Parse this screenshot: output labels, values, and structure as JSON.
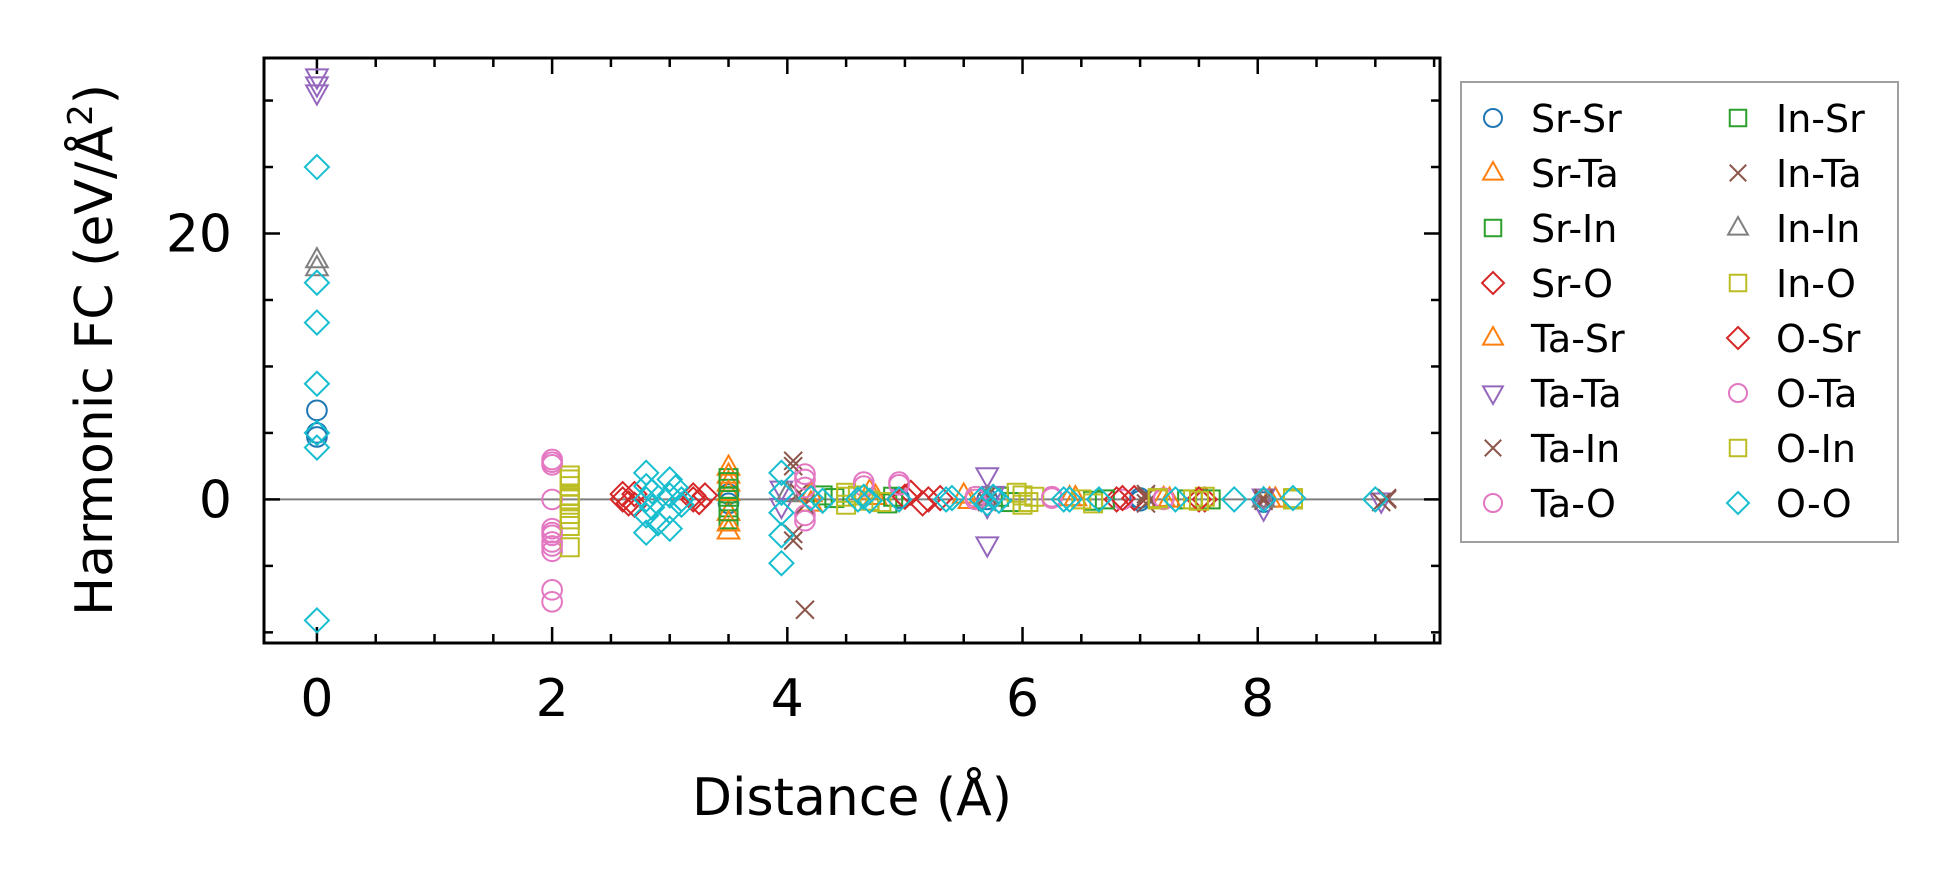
{
  "chart_data": {
    "type": "scatter",
    "xlabel": "Distance (Å)",
    "ylabel_main": "Harmonic FC (eV/Å",
    "ylabel_sup": "2",
    "ylabel_end": ")",
    "xlim": [
      -0.45,
      9.55
    ],
    "ylim": [
      -10.8,
      33.2
    ],
    "xticks": [
      0,
      2,
      4,
      6,
      8
    ],
    "yticks": [
      0,
      20
    ],
    "xtick_labels": [
      "0",
      "2",
      "4",
      "6",
      "8"
    ],
    "ytick_labels": [
      "0",
      "20"
    ],
    "x_minor_step": 0.5,
    "y_minor_step": 5,
    "zero_line": true,
    "grid": false,
    "legend_position": "outside right",
    "legend_columns": 2,
    "series": [
      {
        "name": "Sr-Sr",
        "marker": "circle",
        "color": "#1f77b4",
        "points": [
          [
            0,
            6.7
          ],
          [
            0,
            5.0
          ],
          [
            0,
            4.7
          ],
          [
            3.5,
            0.4
          ],
          [
            3.5,
            -0.3
          ],
          [
            4.95,
            0.1
          ],
          [
            5.7,
            0
          ],
          [
            7.0,
            0.1
          ],
          [
            7.0,
            -0.1
          ],
          [
            8.05,
            -0.2
          ]
        ]
      },
      {
        "name": "Sr-Ta",
        "marker": "triangle-up",
        "color": "#ff7f0e",
        "points": [
          [
            3.5,
            2.4
          ],
          [
            3.5,
            -2.4
          ],
          [
            3.5,
            1.2
          ],
          [
            3.5,
            -1.0
          ],
          [
            4.2,
            0.4
          ],
          [
            4.7,
            0.6
          ],
          [
            5.5,
            0.3
          ],
          [
            6.4,
            0.1
          ],
          [
            7.2,
            0.05
          ],
          [
            8.1,
            0
          ]
        ]
      },
      {
        "name": "Sr-In",
        "marker": "square",
        "color": "#2ca02c",
        "points": [
          [
            3.5,
            1.6
          ],
          [
            3.5,
            0.8
          ],
          [
            3.5,
            -0.6
          ],
          [
            3.5,
            -1.5
          ],
          [
            4.3,
            0.3
          ],
          [
            4.85,
            -0.3
          ],
          [
            5.8,
            0.2
          ],
          [
            6.6,
            -0.1
          ],
          [
            7.4,
            0
          ],
          [
            8.3,
            0
          ]
        ]
      },
      {
        "name": "Sr-O",
        "marker": "diamond",
        "color": "#d62728",
        "points": [
          [
            2.6,
            0
          ],
          [
            2.65,
            -0.3
          ],
          [
            2.7,
            0.4
          ],
          [
            3.2,
            0.3
          ],
          [
            3.25,
            -0.2
          ],
          [
            4.95,
            0
          ],
          [
            5.05,
            0.5
          ],
          [
            5.15,
            -0.3
          ],
          [
            5.3,
            0.1
          ],
          [
            6.8,
            0
          ],
          [
            6.95,
            0.1
          ],
          [
            7.55,
            0
          ]
        ]
      },
      {
        "name": "Ta-Sr",
        "marker": "triangle-up",
        "color": "#ff7f0e",
        "points": [
          [
            3.5,
            1.8
          ],
          [
            3.5,
            -1.8
          ],
          [
            3.5,
            0.5
          ],
          [
            4.2,
            -0.3
          ],
          [
            4.75,
            0.2
          ],
          [
            5.55,
            -0.1
          ],
          [
            6.45,
            0.1
          ],
          [
            7.25,
            0
          ],
          [
            8.15,
            0
          ]
        ]
      },
      {
        "name": "Ta-Ta",
        "marker": "triangle-down",
        "color": "#9467bd",
        "points": [
          [
            0,
            31.8
          ],
          [
            0,
            31.2
          ],
          [
            0,
            30.6
          ],
          [
            3.95,
            -0.5
          ],
          [
            3.95,
            0.8
          ],
          [
            5.7,
            1.8
          ],
          [
            5.7,
            -3.4
          ],
          [
            5.7,
            -0.5
          ],
          [
            5.75,
            0.4
          ],
          [
            8.05,
            -0.7
          ],
          [
            8.05,
            0.2
          ],
          [
            9.05,
            -0.1
          ]
        ]
      },
      {
        "name": "Ta-In",
        "marker": "x",
        "color": "#8c564b",
        "points": [
          [
            4.05,
            2.9
          ],
          [
            4.05,
            -3.1
          ],
          [
            4.15,
            -8.3
          ],
          [
            4.1,
            0.5
          ],
          [
            5.7,
            0.3
          ],
          [
            7.05,
            -0.3
          ],
          [
            7.05,
            0.4
          ],
          [
            8.05,
            -0.1
          ],
          [
            9.1,
            0
          ],
          [
            9.05,
            -0.2
          ]
        ]
      },
      {
        "name": "Ta-O",
        "marker": "circle",
        "color": "#e377c2",
        "points": [
          [
            2,
            3.0
          ],
          [
            2,
            2.6
          ],
          [
            2,
            0
          ],
          [
            2,
            -2.2
          ],
          [
            2,
            -2.7
          ],
          [
            2,
            -3.2
          ],
          [
            2,
            -3.9
          ],
          [
            2,
            -6.8
          ],
          [
            2,
            -7.7
          ],
          [
            4.15,
            1.9
          ],
          [
            4.15,
            0.9
          ],
          [
            4.15,
            -1.6
          ],
          [
            4.65,
            1.3
          ],
          [
            4.95,
            1.3
          ],
          [
            5.6,
            0.2
          ],
          [
            6.25,
            0.2
          ],
          [
            6.85,
            0
          ],
          [
            7.2,
            0
          ]
        ]
      },
      {
        "name": "In-Sr",
        "marker": "square",
        "color": "#2ca02c",
        "points": [
          [
            3.5,
            1.3
          ],
          [
            3.5,
            0.2
          ],
          [
            3.5,
            -0.9
          ],
          [
            4.4,
            0.1
          ],
          [
            4.9,
            0.2
          ],
          [
            5.9,
            -0.2
          ],
          [
            6.7,
            0
          ],
          [
            7.6,
            0
          ]
        ]
      },
      {
        "name": "In-Ta",
        "marker": "x",
        "color": "#8c564b",
        "points": [
          [
            4.05,
            2.5
          ],
          [
            4.05,
            -2.6
          ],
          [
            4.15,
            -0.4
          ],
          [
            5.7,
            -0.2
          ],
          [
            7.05,
            0.2
          ],
          [
            8.05,
            0.1
          ],
          [
            9.1,
            0.1
          ]
        ]
      },
      {
        "name": "In-In",
        "marker": "triangle-up",
        "color": "#7f7f7f",
        "points": [
          [
            0,
            18.0
          ],
          [
            0,
            17.4
          ],
          [
            4.0,
            0.4
          ],
          [
            5.7,
            0.1
          ],
          [
            8.05,
            0
          ]
        ]
      },
      {
        "name": "In-O",
        "marker": "square",
        "color": "#bcbd22",
        "points": [
          [
            2.15,
            1.8
          ],
          [
            2.15,
            1.0
          ],
          [
            2.15,
            0.3
          ],
          [
            2.15,
            -0.4
          ],
          [
            2.15,
            -1.1
          ],
          [
            2.15,
            -2.0
          ],
          [
            2.15,
            -3.6
          ],
          [
            4.5,
            0.5
          ],
          [
            4.5,
            -0.4
          ],
          [
            4.6,
            0.3
          ],
          [
            4.8,
            -0.2
          ],
          [
            5.95,
            0.5
          ],
          [
            6.0,
            -0.4
          ],
          [
            6.1,
            0.2
          ],
          [
            6.5,
            0
          ],
          [
            6.6,
            -0.3
          ],
          [
            7.15,
            0
          ],
          [
            7.45,
            0
          ],
          [
            7.55,
            0.2
          ],
          [
            8.3,
            0
          ]
        ]
      },
      {
        "name": "O-Sr",
        "marker": "diamond",
        "color": "#d62728",
        "points": [
          [
            2.6,
            0.4
          ],
          [
            2.7,
            -0.4
          ],
          [
            3.2,
            0
          ],
          [
            3.3,
            0.3
          ],
          [
            5.0,
            0.2
          ],
          [
            5.2,
            0
          ],
          [
            6.85,
            0.1
          ],
          [
            7.5,
            0
          ]
        ]
      },
      {
        "name": "O-Ta",
        "marker": "circle",
        "color": "#e377c2",
        "points": [
          [
            2,
            2.8
          ],
          [
            2,
            -2.5
          ],
          [
            2,
            -3.5
          ],
          [
            4.15,
            1.5
          ],
          [
            4.15,
            -1.2
          ],
          [
            4.65,
            1.0
          ],
          [
            4.95,
            1.1
          ],
          [
            5.6,
            0
          ],
          [
            6.25,
            0.1
          ],
          [
            7.2,
            0.1
          ]
        ]
      },
      {
        "name": "O-In",
        "marker": "square",
        "color": "#bcbd22",
        "points": [
          [
            2.15,
            1.5
          ],
          [
            2.15,
            -1.5
          ],
          [
            2.15,
            0
          ],
          [
            4.5,
            0.2
          ],
          [
            4.7,
            -0.1
          ],
          [
            6.0,
            0.3
          ],
          [
            6.05,
            -0.2
          ],
          [
            7.15,
            0.1
          ],
          [
            7.5,
            -0.1
          ],
          [
            8.3,
            0.1
          ]
        ]
      },
      {
        "name": "O-O",
        "marker": "diamond",
        "color": "#17becf",
        "points": [
          [
            0,
            25.0
          ],
          [
            0,
            16.3
          ],
          [
            0,
            13.3
          ],
          [
            0,
            8.7
          ],
          [
            0,
            5.0
          ],
          [
            0,
            3.9
          ],
          [
            0,
            -9.1
          ],
          [
            2.8,
            2.0
          ],
          [
            2.8,
            1.0
          ],
          [
            2.8,
            0
          ],
          [
            2.8,
            -1.2
          ],
          [
            2.8,
            -2.5
          ],
          [
            2.85,
            0.6
          ],
          [
            2.85,
            -0.6
          ],
          [
            2.9,
            -1.8
          ],
          [
            3.0,
            1.5
          ],
          [
            3.0,
            0.3
          ],
          [
            3.0,
            -0.9
          ],
          [
            3.0,
            -2.2
          ],
          [
            3.05,
            0.9
          ],
          [
            3.1,
            0
          ],
          [
            3.1,
            -0.4
          ],
          [
            3.95,
            2.0
          ],
          [
            3.95,
            0.5
          ],
          [
            3.95,
            -1.0
          ],
          [
            3.95,
            -2.7
          ],
          [
            3.95,
            -4.8
          ],
          [
            4.2,
            0.1
          ],
          [
            4.3,
            -0.1
          ],
          [
            4.6,
            0
          ],
          [
            4.65,
            0.2
          ],
          [
            4.7,
            -0.1
          ],
          [
            4.95,
            0
          ],
          [
            5.35,
            0
          ],
          [
            5.4,
            0.1
          ],
          [
            5.65,
            0
          ],
          [
            5.7,
            -0.3
          ],
          [
            5.75,
            0.2
          ],
          [
            5.8,
            -0.1
          ],
          [
            6.35,
            0
          ],
          [
            6.4,
            0
          ],
          [
            6.65,
            0
          ],
          [
            7.3,
            0
          ],
          [
            7.8,
            0
          ],
          [
            8.05,
            0
          ],
          [
            8.3,
            0.1
          ],
          [
            9.0,
            0
          ]
        ]
      }
    ]
  }
}
